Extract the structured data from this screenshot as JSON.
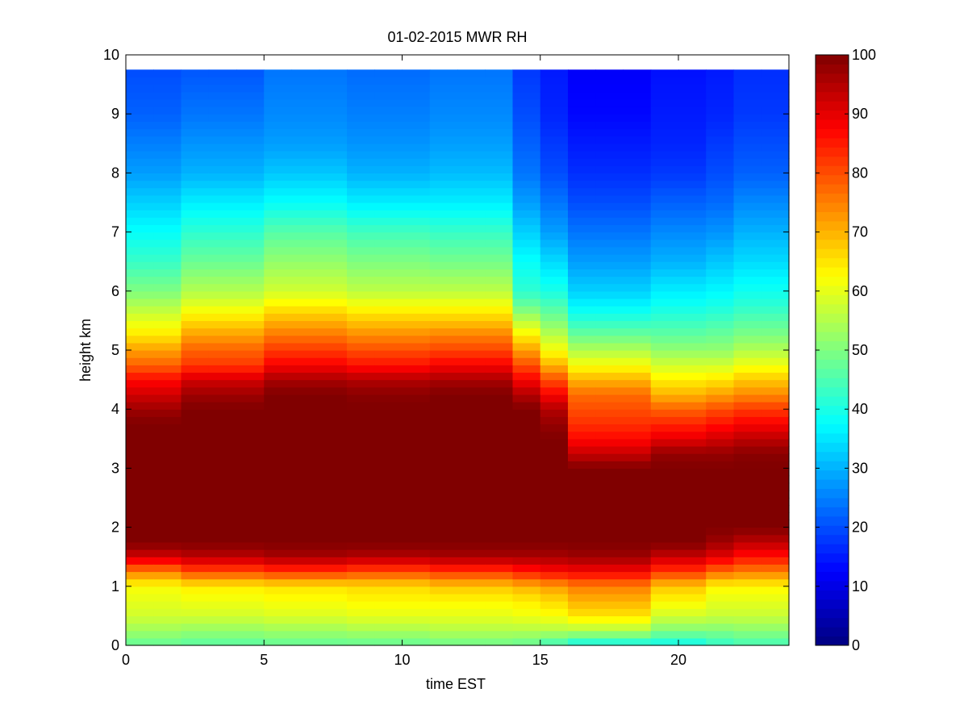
{
  "chart_data": {
    "type": "heatmap",
    "title": "01-02-2015 MWR RH",
    "xlabel": "time EST",
    "ylabel": "height km",
    "xlim": [
      0,
      24
    ],
    "ylim": [
      0,
      10
    ],
    "x_ticks": [
      0,
      5,
      10,
      15,
      20
    ],
    "y_ticks": [
      0,
      1,
      2,
      3,
      4,
      5,
      6,
      7,
      8,
      9,
      10
    ],
    "colorbar": {
      "colormap": "jet",
      "clim": [
        0,
        100
      ],
      "ticks": [
        0,
        10,
        20,
        30,
        40,
        50,
        60,
        70,
        80,
        90,
        100
      ]
    },
    "time_start": 0,
    "time_step": 1,
    "time_count": 24,
    "height_max": 9.75,
    "height_levels_km": [
      0.0,
      0.25,
      0.5,
      0.75,
      1.0,
      1.25,
      1.5,
      1.75,
      2.0,
      2.5,
      3.0,
      3.25,
      3.5,
      3.75,
      4.0,
      4.25,
      4.5,
      4.75,
      5.0,
      5.25,
      5.5,
      5.75,
      6.0,
      6.5,
      7.0,
      7.5,
      8.0,
      8.5,
      9.0,
      9.75
    ],
    "profiles": [
      {
        "t": [
          0,
          1
        ],
        "rh": [
          47,
          53,
          58,
          60,
          62,
          75,
          92,
          100,
          100,
          100,
          100,
          100,
          100,
          100,
          97,
          92,
          87,
          78,
          72,
          65,
          60,
          55,
          50,
          43,
          38,
          33,
          28,
          25,
          22,
          20
        ]
      },
      {
        "t": [
          2,
          3,
          4
        ],
        "rh": [
          46,
          52,
          58,
          61,
          64,
          80,
          94,
          100,
          100,
          100,
          100,
          100,
          100,
          100,
          100,
          97,
          92,
          82,
          78,
          72,
          66,
          60,
          55,
          48,
          42,
          36,
          30,
          27,
          24,
          21
        ]
      },
      {
        "t": [
          5,
          6,
          7
        ],
        "rh": [
          47,
          53,
          59,
          62,
          65,
          82,
          96,
          100,
          100,
          100,
          100,
          100,
          100,
          100,
          100,
          100,
          96,
          88,
          82,
          76,
          70,
          64,
          58,
          52,
          46,
          38,
          32,
          28,
          26,
          24
        ]
      },
      {
        "t": [
          8,
          9,
          10
        ],
        "rh": [
          47,
          54,
          60,
          63,
          66,
          80,
          95,
          100,
          100,
          100,
          100,
          100,
          100,
          100,
          100,
          99,
          95,
          86,
          80,
          74,
          68,
          62,
          56,
          50,
          44,
          36,
          30,
          27,
          25,
          23
        ]
      },
      {
        "t": [
          11,
          12,
          13
        ],
        "rh": [
          48,
          55,
          60,
          63,
          68,
          82,
          96,
          100,
          100,
          100,
          100,
          100,
          100,
          100,
          100,
          100,
          96,
          88,
          81,
          75,
          68,
          62,
          56,
          49,
          43,
          36,
          31,
          28,
          26,
          24
        ]
      },
      {
        "t": [
          14
        ],
        "rh": [
          47,
          55,
          61,
          64,
          70,
          85,
          96,
          100,
          100,
          100,
          100,
          100,
          100,
          100,
          100,
          95,
          88,
          80,
          72,
          64,
          56,
          48,
          42,
          38,
          33,
          28,
          24,
          22,
          20,
          18
        ]
      },
      {
        "t": [
          15
        ],
        "rh": [
          43,
          55,
          62,
          66,
          72,
          87,
          96,
          100,
          100,
          100,
          100,
          100,
          100,
          98,
          95,
          88,
          80,
          70,
          62,
          56,
          50,
          45,
          40,
          34,
          28,
          24,
          20,
          18,
          16,
          15
        ]
      },
      {
        "t": [
          16,
          17,
          18
        ],
        "rh": [
          38,
          55,
          65,
          70,
          75,
          88,
          97,
          100,
          100,
          100,
          100,
          93,
          87,
          83,
          80,
          77,
          70,
          62,
          55,
          48,
          42,
          37,
          33,
          28,
          24,
          20,
          17,
          15,
          13,
          12
        ]
      },
      {
        "t": [
          19,
          20
        ],
        "rh": [
          38,
          50,
          58,
          63,
          68,
          82,
          93,
          100,
          100,
          100,
          100,
          98,
          90,
          84,
          78,
          70,
          64,
          58,
          52,
          47,
          43,
          39,
          36,
          30,
          26,
          22,
          18,
          16,
          15,
          14
        ]
      },
      {
        "t": [
          21
        ],
        "rh": [
          42,
          50,
          57,
          60,
          63,
          77,
          90,
          97,
          100,
          100,
          100,
          98,
          92,
          86,
          80,
          72,
          65,
          58,
          52,
          48,
          44,
          40,
          37,
          32,
          27,
          23,
          20,
          18,
          16,
          15
        ]
      },
      {
        "t": [
          22,
          23
        ],
        "rh": [
          44,
          51,
          57,
          60,
          63,
          75,
          86,
          94,
          100,
          100,
          100,
          99,
          94,
          88,
          82,
          74,
          68,
          61,
          55,
          50,
          46,
          42,
          39,
          34,
          30,
          26,
          22,
          20,
          18,
          17
        ]
      }
    ]
  }
}
